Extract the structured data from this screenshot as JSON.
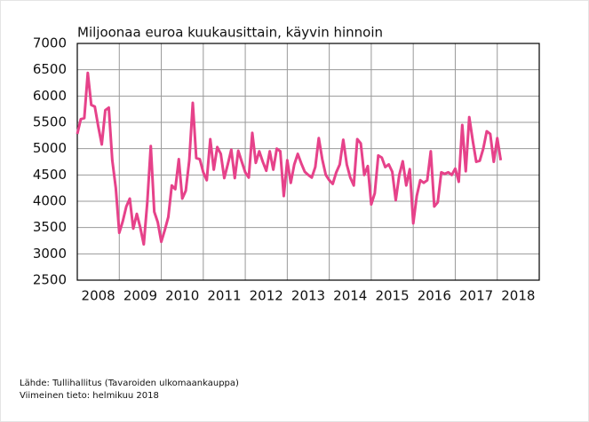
{
  "chart_data": {
    "type": "line",
    "title": "Miljoonaa euroa kuukausittain, käyvin hinnoin",
    "x": [
      2008,
      2008.083,
      2008.167,
      2008.25,
      2008.333,
      2008.417,
      2008.5,
      2008.583,
      2008.667,
      2008.75,
      2008.833,
      2008.917,
      2009,
      2009.083,
      2009.167,
      2009.25,
      2009.333,
      2009.417,
      2009.5,
      2009.583,
      2009.667,
      2009.75,
      2009.833,
      2009.917,
      2010,
      2010.083,
      2010.167,
      2010.25,
      2010.333,
      2010.417,
      2010.5,
      2010.583,
      2010.667,
      2010.75,
      2010.833,
      2010.917,
      2011,
      2011.083,
      2011.167,
      2011.25,
      2011.333,
      2011.417,
      2011.5,
      2011.583,
      2011.667,
      2011.75,
      2011.833,
      2011.917,
      2012,
      2012.083,
      2012.167,
      2012.25,
      2012.333,
      2012.417,
      2012.5,
      2012.583,
      2012.667,
      2012.75,
      2012.833,
      2012.917,
      2013,
      2013.083,
      2013.167,
      2013.25,
      2013.333,
      2013.417,
      2013.5,
      2013.583,
      2013.667,
      2013.75,
      2013.833,
      2013.917,
      2014,
      2014.083,
      2014.167,
      2014.25,
      2014.333,
      2014.417,
      2014.5,
      2014.583,
      2014.667,
      2014.75,
      2014.833,
      2014.917,
      2015,
      2015.083,
      2015.167,
      2015.25,
      2015.333,
      2015.417,
      2015.5,
      2015.583,
      2015.667,
      2015.75,
      2015.833,
      2015.917,
      2016,
      2016.083,
      2016.167,
      2016.25,
      2016.333,
      2016.417,
      2016.5,
      2016.583,
      2016.667,
      2016.75,
      2016.833,
      2016.917,
      2017,
      2017.083,
      2017.167,
      2017.25,
      2017.333,
      2017.417,
      2017.5,
      2017.583,
      2017.667,
      2017.75,
      2017.833,
      2017.917,
      2018,
      2018.083
    ],
    "series": [
      {
        "color": "#e6428a",
        "values": [
          5280,
          5560,
          5580,
          6440,
          5830,
          5800,
          5420,
          5080,
          5730,
          5780,
          4780,
          4250,
          3400,
          3620,
          3900,
          4050,
          3480,
          3760,
          3500,
          3180,
          3980,
          5050,
          3800,
          3600,
          3230,
          3450,
          3700,
          4300,
          4230,
          4800,
          4050,
          4200,
          4780,
          5870,
          4820,
          4800,
          4550,
          4400,
          5180,
          4600,
          5030,
          4900,
          4440,
          4700,
          4980,
          4440,
          4960,
          4750,
          4550,
          4450,
          5300,
          4730,
          4950,
          4750,
          4580,
          4950,
          4600,
          5000,
          4950,
          4100,
          4780,
          4350,
          4700,
          4900,
          4720,
          4560,
          4500,
          4450,
          4650,
          5200,
          4800,
          4500,
          4400,
          4330,
          4550,
          4700,
          5170,
          4700,
          4450,
          4300,
          5180,
          5100,
          4500,
          4670,
          3940,
          4150,
          4870,
          4830,
          4650,
          4700,
          4560,
          4020,
          4500,
          4760,
          4300,
          4610,
          3580,
          4100,
          4400,
          4350,
          4400,
          4950,
          3900,
          3980,
          4550,
          4520,
          4550,
          4500,
          4620,
          4370,
          5450,
          4570,
          5600,
          5150,
          4750,
          4770,
          5000,
          5330,
          5280,
          4750,
          5200,
          4780
        ]
      }
    ],
    "xlim": [
      2008,
      2019
    ],
    "xticks": [
      {
        "value": 2008.5,
        "label": "2008"
      },
      {
        "value": 2009.5,
        "label": "2009"
      },
      {
        "value": 2010.5,
        "label": "2010"
      },
      {
        "value": 2011.5,
        "label": "2011"
      },
      {
        "value": 2012.5,
        "label": "2012"
      },
      {
        "value": 2013.5,
        "label": "2013"
      },
      {
        "value": 2014.5,
        "label": "2014"
      },
      {
        "value": 2015.5,
        "label": "2015"
      },
      {
        "value": 2016.5,
        "label": "2016"
      },
      {
        "value": 2017.5,
        "label": "2017"
      },
      {
        "value": 2018.5,
        "label": "2018"
      }
    ],
    "xgrid": [
      2009,
      2010,
      2011,
      2012,
      2013,
      2014,
      2015,
      2016,
      2017,
      2018
    ],
    "ylim": [
      2500,
      7000
    ],
    "yticks": [
      2500,
      3000,
      3500,
      4000,
      4500,
      5000,
      5500,
      6000,
      6500,
      7000
    ],
    "grid": true,
    "notes": [
      "Lähde: Tullihallitus (Tavaroiden ulkomaankauppa)",
      "Viimeinen tieto: helmikuu 2018"
    ]
  }
}
